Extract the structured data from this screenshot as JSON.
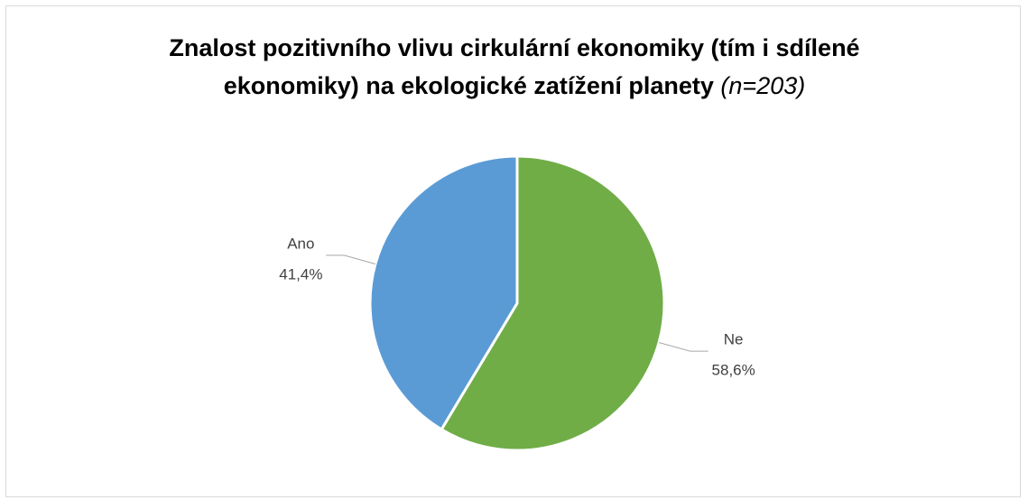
{
  "chart_data": {
    "type": "pie",
    "title": "Znalost pozitivního vlivu cirkulární ekonomiky (tím i sdílené ekonomiky) na ekologické zatížení planety",
    "title_note": "(n=203)",
    "categories": [
      "Ne",
      "Ano"
    ],
    "values": [
      58.6,
      41.4
    ],
    "value_labels": [
      "58,6%",
      "41,4%"
    ],
    "colors": [
      "#70ad47",
      "#5b9bd5"
    ]
  }
}
